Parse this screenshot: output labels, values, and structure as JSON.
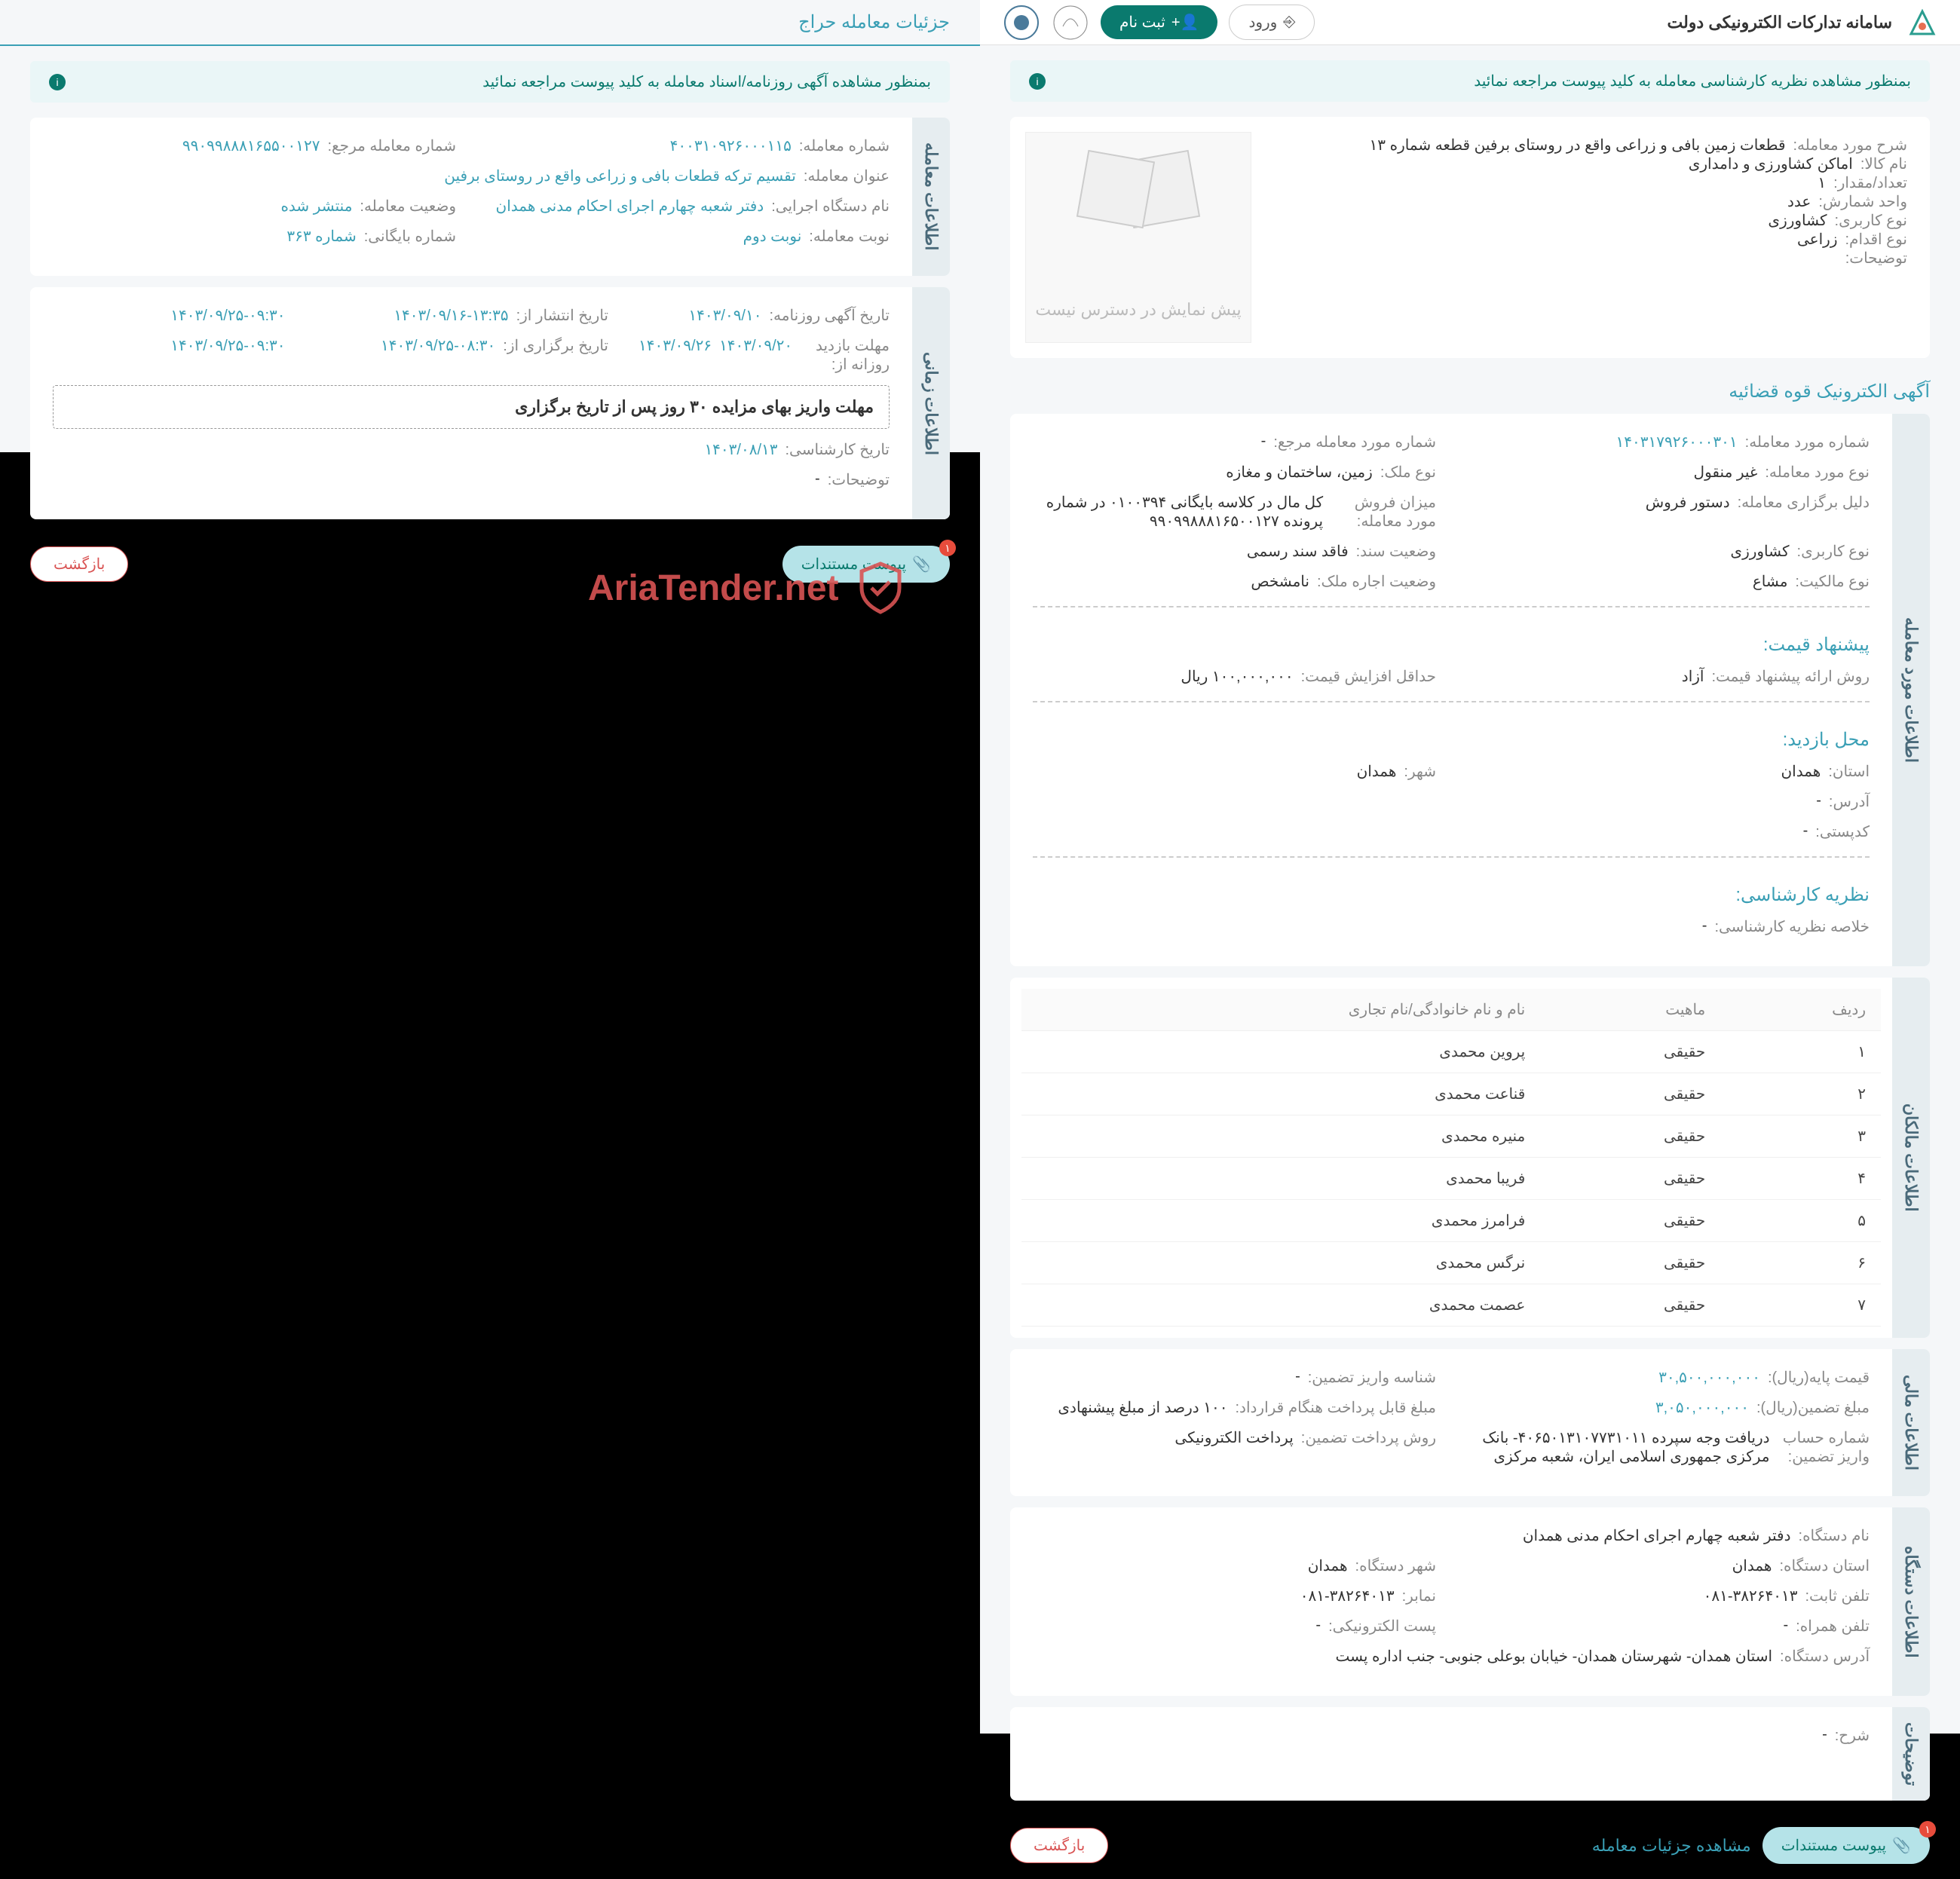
{
  "header": {
    "title": "سامانه تدارکات الکترونیکی دولت",
    "login": "ورود",
    "signup": "ثبت نام"
  },
  "notice_right": "بمنظور مشاهده نظریه کارشناسی معامله به کلید پیوست مراجعه نمائید",
  "notice_left": "بمنظور مشاهده آگهی روزنامه/اسناد معامله به کلید پیوست مراجعه نمائید",
  "top_info": {
    "subject_label": "شرح مورد معامله:",
    "subject": "قطعات زمین بافی و زراعی واقع در روستای برفین قطعه شماره ۱۳",
    "goods_label": "نام کالا:",
    "goods": "اماکن کشاورزی و دامداری",
    "count_label": "تعداد/مقدار:",
    "count": "۱",
    "unit_label": "واحد شمارش:",
    "unit": "عدد",
    "usage_label": "نوع کاربری:",
    "usage": "کشاورزی",
    "land_label": "نوع اقدام:",
    "land": "زراعی",
    "desc_label": "توضیحات:",
    "desc": "",
    "preview": "پیش نمایش در دسترس نیست"
  },
  "announce_title": "آگهی الکترونیک قوه قضائیه",
  "deal_info": {
    "title": "اطلاعات مورد معامله",
    "num_label": "شماره مورد معامله:",
    "num": "۱۴۰۳۱۷۹۲۶۰۰۰۳۰۱",
    "ref_label": "شماره مورد معامله مرجع:",
    "ref": "-",
    "type_label": "نوع مورد معامله:",
    "type": "غیر منقول",
    "estate_label": "نوع ملک:",
    "estate": "زمین، ساختمان و مغازه",
    "reason_label": "دلیل برگزاری معامله:",
    "reason": "دستور فروش",
    "sale_label": "میزان فروش مورد معامله:",
    "sale": "کل مال در کلاسه بایگانی ۰۱۰۰۳۹۴ در شماره پرونده ۹۹۰۹۹۸۸۸۱۶۵۰۰۱۲۷",
    "usage2_label": "نوع کاربری:",
    "usage2": "کشاورزی",
    "doc_label": "وضعیت سند:",
    "doc": "فاقد سند رسمی",
    "own_label": "نوع مالکیت:",
    "own": "مشاع",
    "lease_label": "وضعیت اجاره ملک:",
    "lease": "نامشخص"
  },
  "price_info": {
    "title": "پیشنهاد قیمت:",
    "method_label": "روش ارائه پیشنهاد قیمت:",
    "method": "آزاد",
    "step_label": "حداقل افزایش قیمت:",
    "step": "۱۰۰,۰۰۰,۰۰۰ ریال"
  },
  "visit_info": {
    "title": "محل بازدید:",
    "province_label": "استان:",
    "province": "همدان",
    "city_label": "شهر:",
    "city": "همدان",
    "addr_label": "آدرس:",
    "addr": "-",
    "postal_label": "کدپستی:",
    "postal": "-"
  },
  "expert_info": {
    "title": "نظریه کارشناسی:",
    "summary_label": "خلاصه نظریه کارشناسی:",
    "summary": "-"
  },
  "owners_info": {
    "title": "اطلاعات مالکان",
    "cols": {
      "row": "ردیف",
      "type": "ماهیت",
      "name": "نام و نام خانوادگی/نام تجاری"
    },
    "rows": [
      {
        "i": "۱",
        "t": "حقیقی",
        "n": "پروین محمدی"
      },
      {
        "i": "۲",
        "t": "حقیقی",
        "n": "قناعت محمدی"
      },
      {
        "i": "۳",
        "t": "حقیقی",
        "n": "منیره محمدی"
      },
      {
        "i": "۴",
        "t": "حقیقی",
        "n": "فریبا محمدی"
      },
      {
        "i": "۵",
        "t": "حقیقی",
        "n": "فرامرز محمدی"
      },
      {
        "i": "۶",
        "t": "حقیقی",
        "n": "نرگس محمدی"
      },
      {
        "i": "۷",
        "t": "حقیقی",
        "n": "عصمت محمدی"
      }
    ]
  },
  "finance_info": {
    "title": "اطلاعات مالی",
    "base_label": "قیمت پایه(ریال):",
    "base": "۳۰,۵۰۰,۰۰۰,۰۰۰",
    "guar_id_label": "شناسه واریز تضمین:",
    "guar_id": "-",
    "guar_label": "مبلغ تضمین(ریال):",
    "guar": "۳,۰۵۰,۰۰۰,۰۰۰",
    "pay_label": "مبلغ قابل پرداخت هنگام قرارداد:",
    "pay": "۱۰۰ درصد از مبلغ پیشنهادی",
    "account_label": "شماره حساب واریز تضمین:",
    "account": "دریافت وجه سپرده ۴۰۶۵۰۱۳۱۰۷۷۳۱۰۱۱- بانک مرکزی جمهوری اسلامی ایران، شعبه مرکزی",
    "method_label": "روش پرداخت تضمین:",
    "method": "پرداخت الکترونیکی"
  },
  "org_info": {
    "title": "اطلاعات دستگاه",
    "name_label": "نام دستگاه:",
    "name": "دفتر شعبه چهارم اجرای احکام مدنی همدان",
    "province_label": "استان دستگاه:",
    "province": "همدان",
    "city_label": "شهر دستگاه:",
    "city": "همدان",
    "phone_label": "تلفن ثابت:",
    "phone": "۰۸۱-۳۸۲۶۴۰۱۳",
    "fax_label": "نمابر:",
    "fax": "۰۸۱-۳۸۲۶۴۰۱۳",
    "mobile_label": "تلفن همراه:",
    "mobile": "-",
    "email_label": "پست الکترونیکی:",
    "email": "-",
    "addr_label": "آدرس دستگاه:",
    "addr": "استان همدان- شهرستان همدان- خیابان بوعلی جنوبی- جنب اداره پست"
  },
  "notes_info": {
    "title": "توضیحات",
    "desc_label": "شرح:",
    "desc": "-"
  },
  "footer": {
    "attach": "پیوست مستندات",
    "detail": "مشاهده جزئیات معامله",
    "back": "بازگشت",
    "badge": "۱"
  },
  "left_panel": {
    "title": "جزئیات معامله حراج",
    "info_title": "اطلاعات معامله",
    "num_label": "شماره معامله:",
    "num": "۴۰۰۳۱۰۹۲۶۰۰۰۱۱۵",
    "ref_label": "شماره معامله مرجع:",
    "ref": "۹۹۰۹۹۸۸۸۱۶۵۵۰۰۱۲۷",
    "title_label": "عنوان معامله:",
    "title_val": "تقسیم ترکه قطعات بافی و زراعی واقع در روستای برفین",
    "org_label": "نام دستگاه اجرایی:",
    "org": "دفتر شعبه چهارم اجرای احکام مدنی همدان",
    "status_label": "وضعیت معامله:",
    "status": "منتشر شده",
    "turn_label": "نوبت معامله:",
    "turn": "نوبت دوم",
    "arch_label": "شماره بایگانی:",
    "arch": "شماره ۳۶۳",
    "time_title": "اطلاعات زمانی",
    "news_label": "تاریخ آگهی روزنامه:",
    "news": "۱۴۰۳/۰۹/۱۰",
    "pub_label": "تاریخ انتشار از:",
    "pub": "۱۴۰۳/۰۹/۱۶-۱۳:۳۵",
    "pub_to": "۱۴۰۳/۰۹/۲۵-۰۹:۳۰",
    "visit_label": "مهلت بازدید روزانه از:",
    "visit": "۱۴۰۳/۰۹/۲۰",
    "visit_to": "۱۴۰۳/۰۹/۲۶",
    "hold_label": "تاریخ برگزاری از:",
    "hold": "۱۴۰۳/۰۹/۲۵-۰۸:۳۰",
    "hold_to": "۱۴۰۳/۰۹/۲۵-۰۹:۳۰",
    "deadline": "مهلت واریز بهای مزایده ۳۰ روز پس از تاریخ برگزاری",
    "expert_label": "تاریخ کارشناسی:",
    "expert": "۱۴۰۳/۰۸/۱۳",
    "desc_label": "توضیحات:",
    "desc": "-",
    "attach": "پیوست مستندات",
    "back": "بازگشت",
    "badge": "۱"
  },
  "watermark": "AriaTender.net"
}
